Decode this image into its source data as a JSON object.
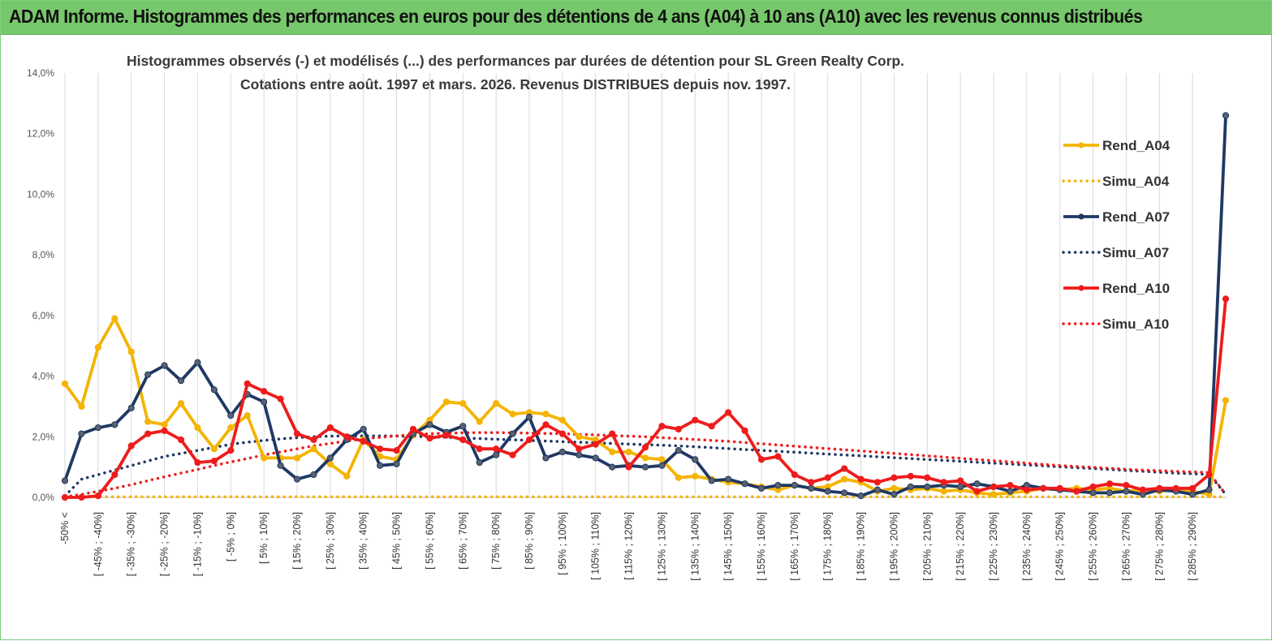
{
  "banner": {
    "title": "ADAM Informe. Histogrammes des performances en euros pour des détentions de 4 ans (A04) à 10 ans (A10) avec les revenus connus distribués"
  },
  "chart_data": {
    "type": "line",
    "title": "Histogrammes observés (-) et modélisés (...) des performances par durées de détention pour SL Green Realty Corp.",
    "subtitle": "Cotations entre août. 1997 et mars. 2026. Revenus DISTRIBUES depuis nov. 1997.",
    "xlabel": "",
    "ylabel": "",
    "ylim": [
      0,
      14
    ],
    "y_ticks": [
      "0,0%",
      "2,0%",
      "4,0%",
      "6,0%",
      "8,0%",
      "10,0%",
      "12,0%",
      "14,0%"
    ],
    "grid": "vertical",
    "legend_position": "right",
    "categories": [
      "-50% <",
      "[ -50% ; -45%",
      "[ -45% ; -40%",
      "[ -40% ; -35%",
      "[ -35% ; -30%",
      "[ -30% ; -25%",
      "[ -25% ; -20%",
      "[ -20% ; -15%",
      "[ -15% ; -10%",
      "[ -10% ; -5%",
      "[ -5% ; 0%",
      "[ 0% ; 5%",
      "[ 5% ; 10%",
      "[ 10% ; 15%",
      "[ 15% ; 20%",
      "[ 20% ; 25%",
      "[ 25% ; 30%",
      "[ 30% ; 35%",
      "[ 35% ; 40%",
      "[ 40% ; 45%",
      "[ 45% ; 50%",
      "[ 50% ; 55%",
      "[ 55% ; 60%",
      "[ 60% ; 65%",
      "[ 65% ; 70%",
      "[ 70% ; 75%",
      "[ 75% ; 80%",
      "[ 80% ; 85%",
      "[ 85% ; 90%",
      "[ 90% ; 95%",
      "[ 95% ; 100%",
      "[ 100% ; 105%",
      "[ 105% ; 110%",
      "[ 110% ; 115%",
      "[ 115% ; 120%",
      "[ 120% ; 125%",
      "[ 125% ; 130%",
      "[ 130% ; 135%",
      "[ 135% ; 140%",
      "[ 140% ; 145%",
      "[ 145% ; 150%",
      "[ 150% ; 155%",
      "[ 155% ; 160%",
      "[ 160% ; 165%",
      "[ 165% ; 170%",
      "[ 170% ; 175%",
      "[ 175% ; 180%",
      "[ 180% ; 185%",
      "[ 185% ; 190%",
      "[ 190% ; 195%",
      "[ 195% ; 200%",
      "[ 200% ; 205%",
      "[ 205% ; 210%",
      "[ 210% ; 215%",
      "[ 215% ; 220%",
      "[ 220% ; 225%",
      "[ 225% ; 230%",
      "[ 230% ; 235%",
      "[ 235% ; 240%",
      "[ 240% ; 245%",
      "[ 245% ; 250%",
      "[ 250% ; 255%",
      "[ 255% ; 260%",
      "[ 260% ; 265%",
      "[ 265% ; 270%",
      "[ 270% ; 275%",
      "[ 275% ; 280%",
      "[ 280% ; 285%",
      "[ 285% ; 290%",
      "[ 290% ; 295%",
      "> 295%"
    ],
    "visible_category_labels": [
      "-50% <",
      "[ -45% ; -40%]",
      "[ -35% ; -30%]",
      "[ -25% ; -20%]",
      "[ -15% ; -10%]",
      "[ -5% ; 0%]",
      "[ 5% ; 10%]",
      "[ 15% ; 20%]",
      "[ 25% ; 30%]",
      "[ 35% ; 40%]",
      "[ 45% ; 50%]",
      "[ 55% ; 60%]",
      "[ 65% ; 70%]",
      "[ 75% ; 80%]",
      "[ 85% ; 90%]",
      "[ 95% ; 100%]",
      "[ 105% ; 110%]",
      "[ 115% ; 120%]",
      "[ 125% ; 130%]",
      "[ 135% ; 140%]",
      "[ 145% ; 150%]",
      "[ 155% ; 160%]",
      "[ 165% ; 170%]",
      "[ 175% ; 180%]",
      "[ 185% ; 190%]",
      "[ 195% ; 200%]",
      "[ 205% ; 210%]",
      "[ 215% ; 220%]",
      "[ 225% ; 230%]",
      "[ 235% ; 240%]",
      "[ 245% ; 250%]",
      "[ 255% ; 260%]",
      "[ 265% ; 270%]",
      "[ 275% ; 280%]",
      "[ 285% ; 290%]"
    ],
    "series": [
      {
        "name": "Rend_A04",
        "color": "#f4b400",
        "style": "solid",
        "marker": true,
        "values": [
          3.75,
          3.0,
          4.95,
          5.9,
          4.8,
          2.5,
          2.4,
          3.1,
          2.3,
          1.6,
          2.3,
          2.7,
          1.3,
          1.3,
          1.3,
          1.6,
          1.1,
          0.7,
          1.9,
          1.35,
          1.25,
          2.05,
          2.55,
          3.15,
          3.1,
          2.5,
          3.1,
          2.75,
          2.8,
          2.75,
          2.55,
          2.0,
          1.9,
          1.5,
          1.5,
          1.3,
          1.25,
          0.65,
          0.7,
          0.6,
          0.5,
          0.45,
          0.35,
          0.25,
          0.4,
          0.3,
          0.35,
          0.6,
          0.5,
          0.2,
          0.3,
          0.25,
          0.3,
          0.2,
          0.25,
          0.15,
          0.1,
          0.15,
          0.2,
          0.3,
          0.25,
          0.3,
          0.25,
          0.3,
          0.2,
          0.25,
          0.2,
          0.25,
          0.2,
          0.1,
          3.2
        ]
      },
      {
        "name": "Simu_A04",
        "color": "#f4b400",
        "style": "dotted",
        "marker": false,
        "values": [
          0.02,
          0.02,
          0.02,
          0.02,
          0.02,
          0.02,
          0.02,
          0.02,
          0.02,
          0.02,
          0.02,
          0.02,
          0.02,
          0.02,
          0.02,
          0.02,
          0.02,
          0.02,
          0.02,
          0.02,
          0.02,
          0.02,
          0.02,
          0.02,
          0.02,
          0.02,
          0.02,
          0.02,
          0.02,
          0.02,
          0.02,
          0.02,
          0.02,
          0.02,
          0.02,
          0.02,
          0.02,
          0.02,
          0.02,
          0.02,
          0.02,
          0.02,
          0.02,
          0.02,
          0.02,
          0.02,
          0.02,
          0.02,
          0.02,
          0.02,
          0.02,
          0.02,
          0.02,
          0.02,
          0.02,
          0.02,
          0.02,
          0.02,
          0.02,
          0.02,
          0.02,
          0.02,
          0.02,
          0.02,
          0.02,
          0.02,
          0.02,
          0.02,
          0.02,
          0.02,
          0.02
        ]
      },
      {
        "name": "Rend_A07",
        "color": "#1f3864",
        "style": "solid",
        "marker": true,
        "values": [
          0.55,
          2.1,
          2.3,
          2.4,
          2.95,
          4.05,
          4.35,
          3.85,
          4.45,
          3.55,
          2.7,
          3.4,
          3.15,
          1.05,
          0.6,
          0.75,
          1.3,
          1.9,
          2.25,
          1.05,
          1.1,
          2.1,
          2.4,
          2.15,
          2.35,
          1.15,
          1.4,
          2.1,
          2.65,
          1.3,
          1.5,
          1.4,
          1.3,
          1.0,
          1.05,
          1.0,
          1.05,
          1.55,
          1.25,
          0.55,
          0.6,
          0.45,
          0.3,
          0.4,
          0.4,
          0.3,
          0.2,
          0.15,
          0.05,
          0.25,
          0.1,
          0.35,
          0.35,
          0.4,
          0.35,
          0.45,
          0.35,
          0.2,
          0.4,
          0.3,
          0.25,
          0.2,
          0.15,
          0.15,
          0.2,
          0.1,
          0.25,
          0.2,
          0.1,
          0.25,
          12.6
        ]
      },
      {
        "name": "Simu_A07",
        "color": "#1f3864",
        "style": "dotted",
        "marker": false,
        "values": [
          0.05,
          0.6,
          0.75,
          0.9,
          1.05,
          1.2,
          1.35,
          1.45,
          1.55,
          1.65,
          1.75,
          1.82,
          1.88,
          1.93,
          1.97,
          2.0,
          2.02,
          2.03,
          2.03,
          2.03,
          2.02,
          2.01,
          2.0,
          1.98,
          1.96,
          1.94,
          1.92,
          1.9,
          1.88,
          1.86,
          1.84,
          1.82,
          1.8,
          1.78,
          1.76,
          1.74,
          1.72,
          1.7,
          1.67,
          1.64,
          1.61,
          1.58,
          1.55,
          1.52,
          1.49,
          1.46,
          1.43,
          1.4,
          1.37,
          1.34,
          1.31,
          1.28,
          1.25,
          1.22,
          1.19,
          1.16,
          1.13,
          1.1,
          1.07,
          1.04,
          1.01,
          0.98,
          0.95,
          0.92,
          0.89,
          0.86,
          0.83,
          0.8,
          0.78,
          0.76,
          0.1
        ]
      },
      {
        "name": "Rend_A10",
        "color": "#ee1c1c",
        "style": "solid",
        "marker": true,
        "values": [
          0.0,
          0.0,
          0.05,
          0.75,
          1.7,
          2.1,
          2.2,
          1.9,
          1.15,
          1.2,
          1.55,
          3.75,
          3.5,
          3.25,
          2.1,
          1.9,
          2.3,
          2.0,
          1.85,
          1.6,
          1.55,
          2.25,
          1.95,
          2.05,
          1.9,
          1.6,
          1.6,
          1.4,
          1.9,
          2.4,
          2.1,
          1.6,
          1.75,
          2.1,
          1.0,
          1.65,
          2.35,
          2.25,
          2.55,
          2.35,
          2.8,
          2.2,
          1.25,
          1.35,
          0.75,
          0.5,
          0.65,
          0.95,
          0.6,
          0.5,
          0.65,
          0.7,
          0.65,
          0.5,
          0.55,
          0.2,
          0.35,
          0.4,
          0.25,
          0.3,
          0.3,
          0.2,
          0.35,
          0.45,
          0.4,
          0.25,
          0.3,
          0.3,
          0.3,
          0.75,
          6.55
        ]
      },
      {
        "name": "Simu_A10",
        "color": "#ee1c1c",
        "style": "dotted",
        "marker": false,
        "values": [
          0.02,
          0.1,
          0.2,
          0.3,
          0.42,
          0.55,
          0.68,
          0.8,
          0.92,
          1.05,
          1.17,
          1.28,
          1.4,
          1.5,
          1.6,
          1.7,
          1.78,
          1.86,
          1.93,
          1.98,
          2.03,
          2.07,
          2.1,
          2.12,
          2.13,
          2.14,
          2.14,
          2.13,
          2.12,
          2.11,
          2.1,
          2.08,
          2.06,
          2.04,
          2.02,
          2.0,
          1.97,
          1.94,
          1.91,
          1.88,
          1.85,
          1.81,
          1.77,
          1.73,
          1.69,
          1.65,
          1.61,
          1.57,
          1.53,
          1.49,
          1.45,
          1.41,
          1.37,
          1.33,
          1.29,
          1.25,
          1.21,
          1.17,
          1.13,
          1.09,
          1.05,
          1.02,
          0.99,
          0.96,
          0.93,
          0.9,
          0.88,
          0.86,
          0.84,
          0.82,
          0.1
        ]
      }
    ]
  }
}
